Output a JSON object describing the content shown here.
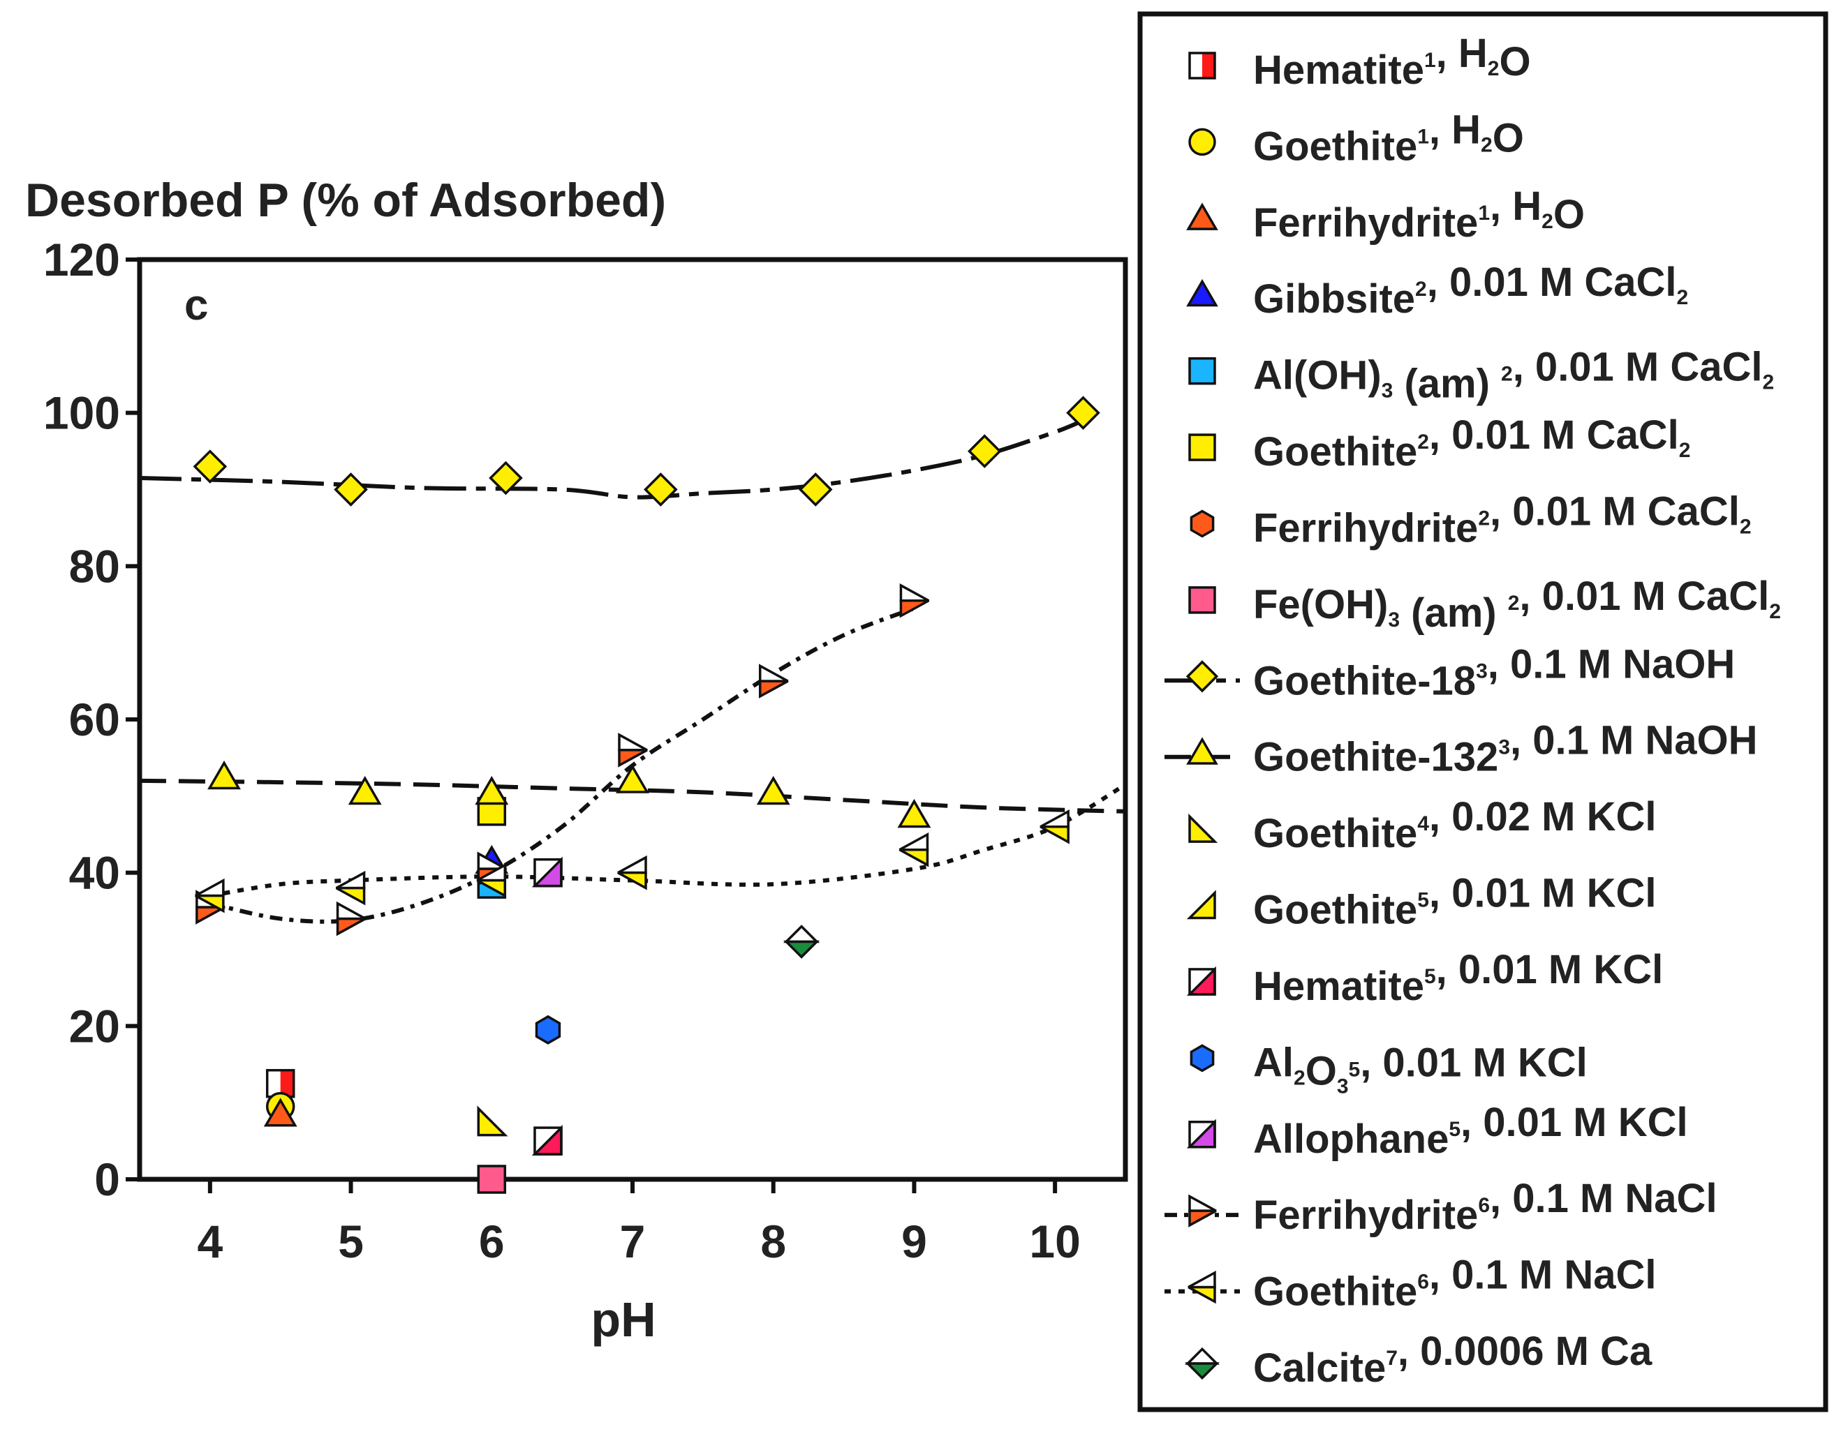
{
  "chart_data": {
    "type": "scatter",
    "title": "",
    "ylabel": "Desorbed P (% of Adsorbed)",
    "xlabel": "pH",
    "panel_label": "c",
    "xlim": [
      3.5,
      10.5
    ],
    "ylim": [
      0,
      120
    ],
    "xticks": [
      4,
      5,
      6,
      7,
      8,
      9,
      10
    ],
    "yticks": [
      0,
      20,
      40,
      60,
      80,
      100,
      120
    ],
    "grid": false,
    "legend_position": "right",
    "series": [
      {
        "name": "Hematite¹, H₂O",
        "legend": {
          "base": "Hematite",
          "sup": "1",
          "rest": [
            {
              "t": ", H"
            },
            {
              "t": "2",
              "s": "sub"
            },
            {
              "t": "O"
            }
          ]
        },
        "marker": "square-split",
        "fill": "#ff1a1a",
        "connect": "none",
        "points": [
          [
            4.5,
            12.5
          ]
        ]
      },
      {
        "name": "Goethite¹, H₂O",
        "legend": {
          "base": "Goethite",
          "sup": "1",
          "rest": [
            {
              "t": ", H"
            },
            {
              "t": "2",
              "s": "sub"
            },
            {
              "t": "O"
            }
          ]
        },
        "marker": "circle",
        "fill": "#ffee00",
        "connect": "none",
        "points": [
          [
            4.5,
            9.5
          ]
        ]
      },
      {
        "name": "Ferrihydrite¹, H₂O",
        "legend": {
          "base": "Ferrihydrite",
          "sup": "1",
          "rest": [
            {
              "t": ", H"
            },
            {
              "t": "2",
              "s": "sub"
            },
            {
              "t": "O"
            }
          ]
        },
        "marker": "triangle-up",
        "fill": "#ff5a1a",
        "connect": "none",
        "points": [
          [
            4.5,
            8.5
          ]
        ]
      },
      {
        "name": "Gibbsite², 0.01 M CaCl₂",
        "legend": {
          "base": "Gibbsite",
          "sup": "2",
          "rest": [
            {
              "t": ", 0.01 M CaCl"
            },
            {
              "t": "2",
              "s": "sub"
            }
          ]
        },
        "marker": "triangle-up",
        "fill": "#1a1aff",
        "connect": "none",
        "points": [
          [
            6.0,
            41.5
          ]
        ]
      },
      {
        "name": "Al(OH)₃ (am)², 0.01 M CaCl₂",
        "legend": {
          "base": "Al(OH)",
          "rest": [
            {
              "t": "3",
              "s": "sub"
            },
            {
              "t": " (am) "
            },
            {
              "t": "2",
              "s": "sup"
            },
            {
              "t": ", 0.01 M CaCl"
            },
            {
              "t": "2",
              "s": "sub"
            }
          ]
        },
        "marker": "square",
        "fill": "#1ab4ff",
        "connect": "none",
        "points": [
          [
            6.0,
            38.5
          ]
        ]
      },
      {
        "name": "Goethite², 0.01 M CaCl₂",
        "legend": {
          "base": "Goethite",
          "sup": "2",
          "rest": [
            {
              "t": ", 0.01 M CaCl"
            },
            {
              "t": "2",
              "s": "sub"
            }
          ]
        },
        "marker": "square",
        "fill": "#ffee00",
        "connect": "none",
        "points": [
          [
            6.0,
            48.0
          ]
        ]
      },
      {
        "name": "Ferrihydrite², 0.01 M CaCl₂",
        "legend": {
          "base": "Ferrihydrite",
          "sup": "2",
          "rest": [
            {
              "t": ", 0.01 M CaCl"
            },
            {
              "t": "2",
              "s": "sub"
            }
          ]
        },
        "marker": "hexagon",
        "fill": "#ff5a1a",
        "connect": "none",
        "points": []
      },
      {
        "name": "Fe(OH)₃ (am)², 0.01 M CaCl₂",
        "legend": {
          "base": "Fe(OH)",
          "rest": [
            {
              "t": "3",
              "s": "sub"
            },
            {
              "t": " (am) "
            },
            {
              "t": "2",
              "s": "sup"
            },
            {
              "t": ", 0.01 M CaCl"
            },
            {
              "t": "2",
              "s": "sub"
            }
          ]
        },
        "marker": "square",
        "fill": "#ff5a8c",
        "connect": "none",
        "points": [
          [
            6.0,
            0.0
          ]
        ]
      },
      {
        "name": "Goethite-18³, 0.1 M NaOH",
        "legend": {
          "base": "Goethite-18",
          "sup": "3",
          "rest": [
            {
              "t": ", 0.1 M NaOH"
            }
          ]
        },
        "marker": "diamond",
        "fill": "#ffee00",
        "connect": "longdash",
        "legend_line": true,
        "points": [
          [
            4.0,
            93.0
          ],
          [
            5.0,
            90.0
          ],
          [
            6.1,
            91.5
          ],
          [
            7.2,
            90.0
          ],
          [
            8.3,
            90.0
          ],
          [
            9.5,
            95.0
          ],
          [
            10.2,
            100.0
          ]
        ],
        "trend": [
          [
            3.5,
            91.5
          ],
          [
            4.5,
            91.0
          ],
          [
            5.5,
            90.2
          ],
          [
            6.5,
            90.0
          ],
          [
            7.0,
            89.0
          ],
          [
            7.5,
            89.5
          ],
          [
            8.0,
            90.0
          ],
          [
            8.5,
            91.0
          ],
          [
            9.0,
            92.5
          ],
          [
            9.5,
            94.5
          ],
          [
            10.0,
            97.5
          ],
          [
            10.2,
            99.0
          ]
        ]
      },
      {
        "name": "Goethite-132³, 0.1 M NaOH",
        "legend": {
          "base": "Goethite-132",
          "sup": "3",
          "rest": [
            {
              "t": ", 0.1 M NaOH"
            }
          ]
        },
        "marker": "triangle-up",
        "fill": "#ffee00",
        "connect": "dash",
        "legend_line": true,
        "points": [
          [
            4.1,
            52.5
          ],
          [
            5.1,
            50.5
          ],
          [
            6.0,
            50.5
          ],
          [
            7.0,
            52.0
          ],
          [
            8.0,
            50.5
          ],
          [
            9.0,
            47.5
          ]
        ],
        "trend": [
          [
            3.5,
            52.0
          ],
          [
            4.5,
            51.8
          ],
          [
            5.5,
            51.5
          ],
          [
            6.5,
            51.0
          ],
          [
            7.5,
            50.5
          ],
          [
            8.5,
            49.5
          ],
          [
            9.5,
            48.5
          ],
          [
            10.5,
            48.0
          ]
        ]
      },
      {
        "name": "Goethite⁴, 0.02 M KCl",
        "legend": {
          "base": "Goethite",
          "sup": "4",
          "rest": [
            {
              "t": ", 0.02 M KCl"
            }
          ]
        },
        "marker": "triangle-right-angled",
        "fill": "#ffee00",
        "connect": "none",
        "points": [
          [
            6.0,
            7.5
          ]
        ]
      },
      {
        "name": "Goethite⁵, 0.01 M KCl",
        "legend": {
          "base": "Goethite",
          "sup": "5",
          "rest": [
            {
              "t": ", 0.01 M KCl"
            }
          ]
        },
        "marker": "triangle-left-angled",
        "fill": "#ffee00",
        "connect": "none",
        "points": []
      },
      {
        "name": "Hematite⁵, 0.01 M KCl",
        "legend": {
          "base": "Hematite",
          "sup": "5",
          "rest": [
            {
              "t": ", 0.01 M KCl"
            }
          ]
        },
        "marker": "square-diag",
        "fill": "#ff1a5a",
        "connect": "none",
        "points": [
          [
            6.4,
            5.0
          ]
        ]
      },
      {
        "name": "Al₂O₃⁵, 0.01 M KCl",
        "legend": {
          "base": "Al",
          "rest": [
            {
              "t": "2",
              "s": "sub"
            },
            {
              "t": "O"
            },
            {
              "t": "3",
              "s": "sub"
            },
            {
              "t": "5",
              "s": "sup"
            },
            {
              "t": ", 0.01 M KCl"
            }
          ]
        },
        "marker": "hexagon",
        "fill": "#1a6cff",
        "connect": "none",
        "points": [
          [
            6.4,
            19.5
          ]
        ]
      },
      {
        "name": "Allophane⁵, 0.01 M KCl",
        "legend": {
          "base": "Allophane",
          "sup": "5",
          "rest": [
            {
              "t": ", 0.01 M KCl"
            }
          ]
        },
        "marker": "square-diag",
        "fill": "#d24be6",
        "connect": "none",
        "points": [
          [
            6.4,
            40.0
          ]
        ]
      },
      {
        "name": "Ferrihydrite⁶, 0.1 M NaCl",
        "legend": {
          "base": "Ferrihydrite",
          "sup": "6",
          "rest": [
            {
              "t": ", 0.1 M NaCl"
            }
          ]
        },
        "marker": "triangle-right-split",
        "fill": "#ff5a1a",
        "connect": "dotdash",
        "legend_line": true,
        "points": [
          [
            4.0,
            35.5
          ],
          [
            5.0,
            34.0
          ],
          [
            6.0,
            40.5
          ],
          [
            7.0,
            56.0
          ],
          [
            8.0,
            65.0
          ],
          [
            9.0,
            75.5
          ]
        ],
        "trend": [
          [
            4.0,
            36.0
          ],
          [
            4.5,
            34.0
          ],
          [
            5.0,
            33.8
          ],
          [
            5.5,
            36.0
          ],
          [
            6.0,
            40.0
          ],
          [
            6.5,
            46.0
          ],
          [
            7.0,
            54.0
          ],
          [
            7.5,
            60.0
          ],
          [
            8.0,
            66.0
          ],
          [
            8.5,
            71.0
          ],
          [
            9.0,
            74.5
          ]
        ]
      },
      {
        "name": "Goethite⁶, 0.1 M NaCl",
        "legend": {
          "base": "Goethite",
          "sup": "6",
          "rest": [
            {
              "t": ", 0.1 M NaCl"
            }
          ]
        },
        "marker": "triangle-left-split",
        "fill": "#ffee00",
        "connect": "dot",
        "legend_line": true,
        "points": [
          [
            4.0,
            37.0
          ],
          [
            5.0,
            38.0
          ],
          [
            6.0,
            39.0
          ],
          [
            7.0,
            40.0
          ],
          [
            9.0,
            43.0
          ],
          [
            10.0,
            46.0
          ]
        ],
        "trend": [
          [
            4.0,
            37.0
          ],
          [
            4.5,
            38.5
          ],
          [
            5.0,
            39.0
          ],
          [
            6.0,
            39.5
          ],
          [
            7.0,
            39.0
          ],
          [
            8.0,
            38.5
          ],
          [
            9.0,
            40.5
          ],
          [
            9.5,
            43.0
          ],
          [
            10.0,
            46.0
          ],
          [
            10.5,
            51.5
          ]
        ]
      },
      {
        "name": "Calcite⁷, 0.0006 M Ca",
        "legend": {
          "base": "Calcite",
          "sup": "7",
          "rest": [
            {
              "t": ", 0.0006 M Ca"
            }
          ]
        },
        "marker": "diamond-split",
        "fill": "#1a8c3c",
        "connect": "none",
        "points": [
          [
            8.2,
            31.0
          ]
        ]
      }
    ]
  }
}
